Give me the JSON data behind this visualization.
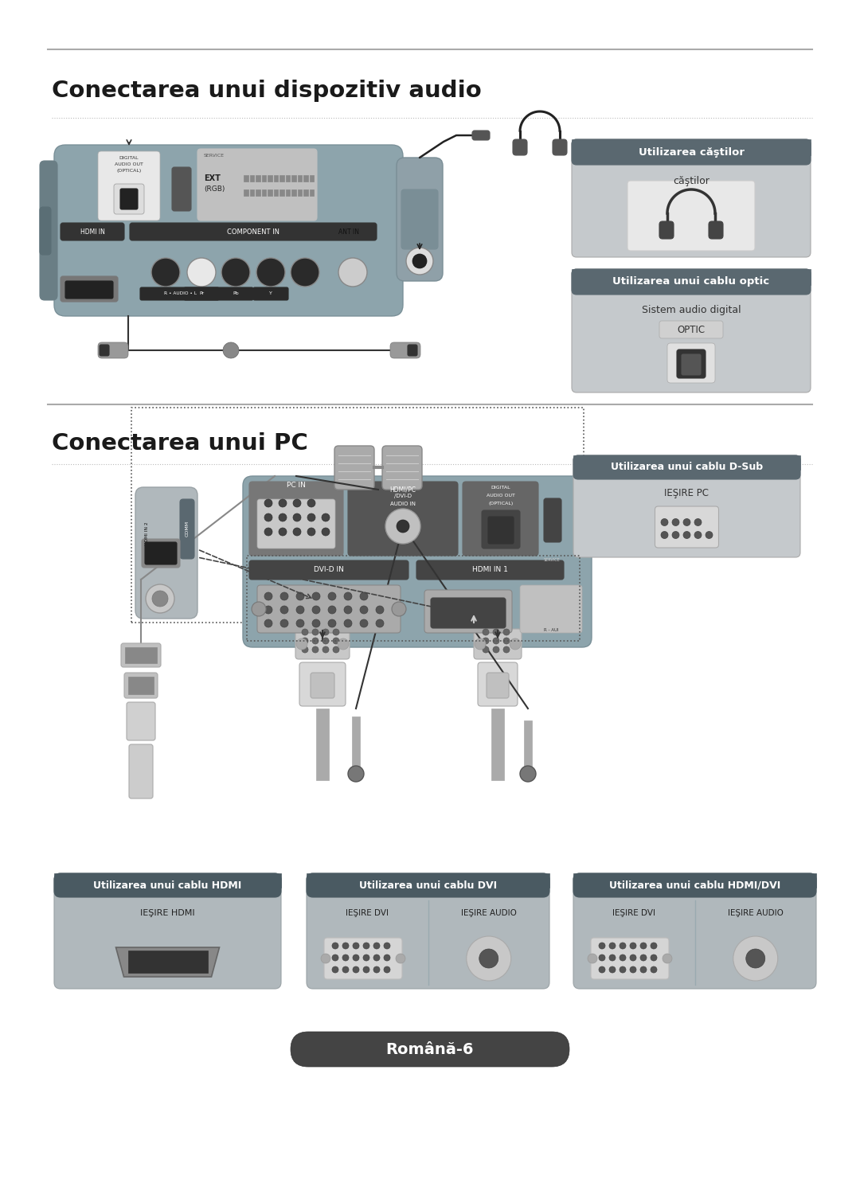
{
  "bg_color": "#ffffff",
  "section1_title": "Conectarea unui dispozitiv audio",
  "section2_title": "Conectarea unui PC",
  "footer_text": "Română-6",
  "panel_color": "#8fa8b0",
  "box1_title": "Utilizarea căştilor",
  "box1_sub": "căştilor",
  "box2_title": "Utilizarea unui cablu optic",
  "box2_sub": "Sistem audio digital",
  "box2_sub2": "OPTIC",
  "box3_title": "Utilizarea unui cablu D-Sub",
  "box3_sub": "IEŞIRE PC",
  "box4_title": "Utilizarea unui cablu HDMI",
  "box4_sub": "IEŞIRE HDMI",
  "box5_title": "Utilizarea unui cablu DVI",
  "box5_sub1": "IEŞIRE DVI",
  "box5_sub2": "IEŞIRE AUDIO",
  "box6_title": "Utilizarea unui cablu HDMI/DVI",
  "box6_sub1": "IEŞIRE DVI",
  "box6_sub2": "IEŞIRE AUDIO",
  "heading_color": "#1a1a1a",
  "white": "#ffffff",
  "dark_header": "#5a6a70",
  "light_box_bg": "#c8cccf",
  "medium_gray": "#999999",
  "dark_gray": "#444444",
  "border_color": "#aaaaaa"
}
